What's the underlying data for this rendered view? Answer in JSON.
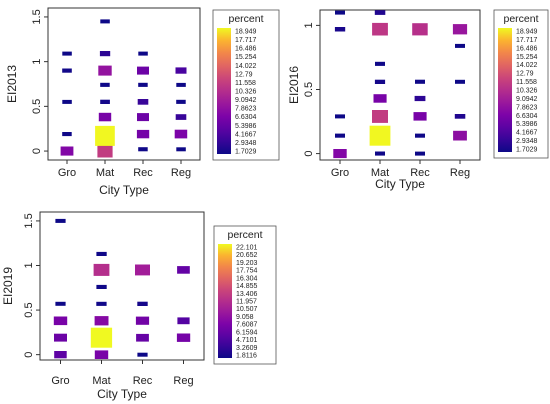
{
  "chart_data": [
    {
      "type": "heatmap",
      "xlabel": "City Type",
      "ylabel": "EI2013",
      "categories": [
        "Gro",
        "Mat",
        "Rec",
        "Reg"
      ],
      "ylim": [
        -0.1,
        1.6
      ],
      "y_ticks": [
        "0",
        "0.5",
        "1",
        "1.5"
      ],
      "legend": {
        "title": "percent",
        "labels": [
          "18.949",
          "17.717",
          "16.486",
          "15.254",
          "14.022",
          "12.79",
          "11.558",
          "10.326",
          "9.0942",
          "7.8623",
          "6.6304",
          "5.3986",
          "4.1667",
          "2.9348",
          "1.7029"
        ],
        "min": 1.7029,
        "max": 18.949
      },
      "cells": [
        {
          "x": "Gro",
          "y": 0.0,
          "value": 7.2
        },
        {
          "x": "Gro",
          "y": 0.19,
          "value": 1.8
        },
        {
          "x": "Gro",
          "y": 0.55,
          "value": 1.7
        },
        {
          "x": "Gro",
          "y": 0.9,
          "value": 1.9
        },
        {
          "x": "Gro",
          "y": 1.09,
          "value": 1.7
        },
        {
          "x": "Mat",
          "y": 0.0,
          "value": 11.3
        },
        {
          "x": "Mat",
          "y": 0.17,
          "value": 18.9
        },
        {
          "x": "Mat",
          "y": 0.38,
          "value": 6.6
        },
        {
          "x": "Mat",
          "y": 0.55,
          "value": 2.0
        },
        {
          "x": "Mat",
          "y": 0.74,
          "value": 1.8
        },
        {
          "x": "Mat",
          "y": 0.9,
          "value": 8.2
        },
        {
          "x": "Mat",
          "y": 1.09,
          "value": 3.0
        },
        {
          "x": "Mat",
          "y": 1.45,
          "value": 1.7
        },
        {
          "x": "Rec",
          "y": 0.02,
          "value": 1.8
        },
        {
          "x": "Rec",
          "y": 0.19,
          "value": 6.4
        },
        {
          "x": "Rec",
          "y": 0.38,
          "value": 6.0
        },
        {
          "x": "Rec",
          "y": 0.55,
          "value": 3.5
        },
        {
          "x": "Rec",
          "y": 0.74,
          "value": 1.8
        },
        {
          "x": "Rec",
          "y": 0.9,
          "value": 6.0
        },
        {
          "x": "Rec",
          "y": 1.09,
          "value": 1.7
        },
        {
          "x": "Reg",
          "y": 0.02,
          "value": 1.7
        },
        {
          "x": "Reg",
          "y": 0.19,
          "value": 6.8
        },
        {
          "x": "Reg",
          "y": 0.38,
          "value": 3.5
        },
        {
          "x": "Reg",
          "y": 0.55,
          "value": 1.8
        },
        {
          "x": "Reg",
          "y": 0.74,
          "value": 1.7
        },
        {
          "x": "Reg",
          "y": 0.9,
          "value": 4.2
        }
      ]
    },
    {
      "type": "heatmap",
      "xlabel": "City Type",
      "ylabel": "EI2016",
      "categories": [
        "Gro",
        "Mat",
        "Rec",
        "Reg"
      ],
      "ylim": [
        -0.05,
        1.12
      ],
      "y_ticks": [
        "0",
        "0.5",
        "1"
      ],
      "legend": {
        "title": "percent",
        "labels": [
          "18.949",
          "17.717",
          "16.486",
          "15.254",
          "14.022",
          "12.79",
          "11.558",
          "10.326",
          "9.0942",
          "7.8623",
          "6.6304",
          "5.3986",
          "4.1667",
          "2.9348",
          "1.7029"
        ],
        "min": 1.7029,
        "max": 18.949
      },
      "cells": [
        {
          "x": "Gro",
          "y": 0.0,
          "value": 7.2
        },
        {
          "x": "Gro",
          "y": 0.14,
          "value": 1.8
        },
        {
          "x": "Gro",
          "y": 0.29,
          "value": 1.7
        },
        {
          "x": "Gro",
          "y": 0.97,
          "value": 2.2
        },
        {
          "x": "Gro",
          "y": 1.1,
          "value": 1.7
        },
        {
          "x": "Mat",
          "y": 0.0,
          "value": 1.8
        },
        {
          "x": "Mat",
          "y": 0.14,
          "value": 18.9
        },
        {
          "x": "Mat",
          "y": 0.29,
          "value": 11.3
        },
        {
          "x": "Mat",
          "y": 0.43,
          "value": 6.6
        },
        {
          "x": "Mat",
          "y": 0.56,
          "value": 2.0
        },
        {
          "x": "Mat",
          "y": 0.7,
          "value": 1.8
        },
        {
          "x": "Mat",
          "y": 0.97,
          "value": 11.0
        },
        {
          "x": "Mat",
          "y": 1.1,
          "value": 2.5
        },
        {
          "x": "Rec",
          "y": 0.0,
          "value": 1.7
        },
        {
          "x": "Rec",
          "y": 0.14,
          "value": 1.8
        },
        {
          "x": "Rec",
          "y": 0.29,
          "value": 6.6
        },
        {
          "x": "Rec",
          "y": 0.43,
          "value": 3.0
        },
        {
          "x": "Rec",
          "y": 0.56,
          "value": 1.8
        },
        {
          "x": "Rec",
          "y": 0.97,
          "value": 10.5
        },
        {
          "x": "Reg",
          "y": 0.14,
          "value": 7.8
        },
        {
          "x": "Reg",
          "y": 0.29,
          "value": 2.5
        },
        {
          "x": "Reg",
          "y": 0.56,
          "value": 1.7
        },
        {
          "x": "Reg",
          "y": 0.84,
          "value": 1.7
        },
        {
          "x": "Reg",
          "y": 0.97,
          "value": 8.5
        }
      ]
    },
    {
      "type": "heatmap",
      "xlabel": "City Type",
      "ylabel": "EI2019",
      "categories": [
        "Gro",
        "Mat",
        "Rec",
        "Reg"
      ],
      "ylim": [
        -0.06,
        1.6
      ],
      "y_ticks": [
        "0",
        "0.5",
        "1",
        "1.5"
      ],
      "legend": {
        "title": "percent",
        "labels": [
          "22.101",
          "20.652",
          "19.203",
          "17.754",
          "16.304",
          "14.855",
          "13.406",
          "11.957",
          "10.507",
          "9.058",
          "7.6087",
          "6.1594",
          "4.7101",
          "3.2609",
          "1.8116"
        ],
        "min": 1.8116,
        "max": 22.101
      },
      "cells": [
        {
          "x": "Gro",
          "y": 0.0,
          "value": 6.0
        },
        {
          "x": "Gro",
          "y": 0.19,
          "value": 6.8
        },
        {
          "x": "Gro",
          "y": 0.38,
          "value": 7.6
        },
        {
          "x": "Gro",
          "y": 0.57,
          "value": 1.8
        },
        {
          "x": "Gro",
          "y": 1.5,
          "value": 1.8
        },
        {
          "x": "Mat",
          "y": 0.0,
          "value": 7.6
        },
        {
          "x": "Mat",
          "y": 0.19,
          "value": 22.1
        },
        {
          "x": "Mat",
          "y": 0.38,
          "value": 8.5
        },
        {
          "x": "Mat",
          "y": 0.57,
          "value": 2.0
        },
        {
          "x": "Mat",
          "y": 0.76,
          "value": 1.9
        },
        {
          "x": "Mat",
          "y": 0.95,
          "value": 12.0
        },
        {
          "x": "Mat",
          "y": 1.13,
          "value": 1.9
        },
        {
          "x": "Rec",
          "y": 0.0,
          "value": 1.8
        },
        {
          "x": "Rec",
          "y": 0.19,
          "value": 6.5
        },
        {
          "x": "Rec",
          "y": 0.38,
          "value": 7.2
        },
        {
          "x": "Rec",
          "y": 0.57,
          "value": 2.2
        },
        {
          "x": "Rec",
          "y": 0.95,
          "value": 10.5
        },
        {
          "x": "Reg",
          "y": 0.19,
          "value": 7.4
        },
        {
          "x": "Reg",
          "y": 0.38,
          "value": 5.4
        },
        {
          "x": "Reg",
          "y": 0.95,
          "value": 6.4
        }
      ]
    }
  ]
}
